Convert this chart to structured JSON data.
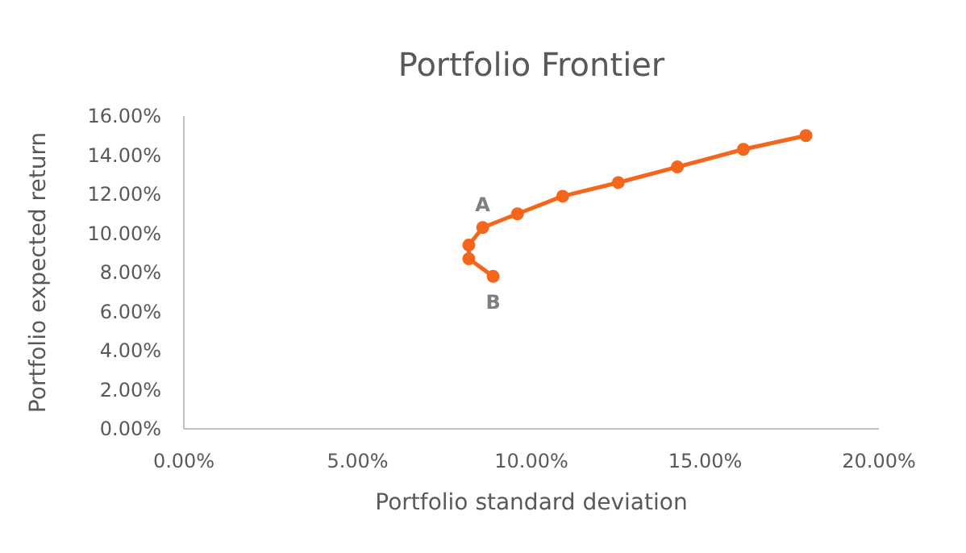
{
  "chart_data": {
    "type": "line",
    "title": "Portfolio Frontier",
    "xlabel": "Portfolio standard deviation",
    "ylabel": "Portfolio expected return",
    "x": [
      8.9,
      8.2,
      8.2,
      8.6,
      9.6,
      10.9,
      12.5,
      14.2,
      16.1,
      17.9
    ],
    "series": [
      {
        "color": "#f4661b",
        "values": [
          7.8,
          8.7,
          9.4,
          10.3,
          11.0,
          11.9,
          12.6,
          13.4,
          14.3,
          15.0
        ]
      }
    ],
    "xlim": [
      0,
      20
    ],
    "xticks": [
      {
        "value": 0,
        "label": "0.00%"
      },
      {
        "value": 5,
        "label": "5.00%"
      },
      {
        "value": 10,
        "label": "10.00%"
      },
      {
        "value": 15,
        "label": "15.00%"
      },
      {
        "value": 20,
        "label": "20.00%"
      }
    ],
    "ylim": [
      0,
      16
    ],
    "yticks": [
      {
        "value": 0,
        "label": "0.00%"
      },
      {
        "value": 2,
        "label": "2.00%"
      },
      {
        "value": 4,
        "label": "4.00%"
      },
      {
        "value": 6,
        "label": "6.00%"
      },
      {
        "value": 8,
        "label": "8.00%"
      },
      {
        "value": 10,
        "label": "10.00%"
      },
      {
        "value": 12,
        "label": "12.00%"
      },
      {
        "value": 14,
        "label": "14.00%"
      },
      {
        "value": 16,
        "label": "16.00%"
      }
    ],
    "annotations": [
      {
        "text": "A",
        "x": 8.6,
        "y": 10.3
      },
      {
        "text": "B",
        "x": 8.9,
        "y": 7.8
      }
    ],
    "marker": "circle",
    "line_style": "solid",
    "grid": false
  }
}
